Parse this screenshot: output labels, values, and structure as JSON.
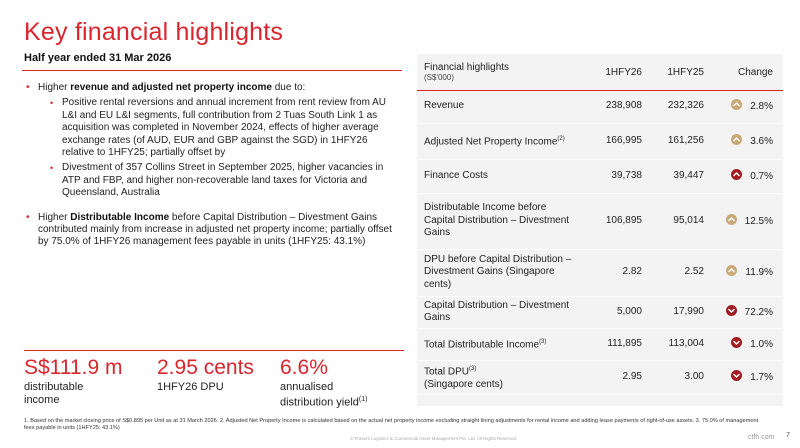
{
  "title": "Key financial highlights",
  "subtitle": "Half year ended 31 Mar 2026",
  "bullets": {
    "b1_pre": "Higher ",
    "b1_bold": "revenue and adjusted net property income",
    "b1_post": " due to:",
    "sub1": "Positive rental reversions and annual increment from rent review from AU L&I and EU L&I segments, full contribution from 2 Tuas South Link 1 as acquisition was completed in November 2024, effects of higher average exchange rates (of AUD, EUR and GBP against the SGD) in 1HFY26 relative to 1HFY25; partially offset by",
    "sub2": "Divestment of 357 Collins Street in September 2025, higher vacancies in ATP and FBP, and higher non-recoverable land taxes for Victoria and Queensland, Australia",
    "b2_pre": "Higher ",
    "b2_bold": "Distributable Income",
    "b2_post": " before Capital Distribution – Divestment Gains contributed mainly from increase in adjusted net property income; partially offset by 75.0% of 1HFY26 management fees payable in units (1HFY25: 43.1%)"
  },
  "kpis": [
    {
      "value": "S$111.9 m",
      "label_line1": "distributable",
      "label_line2": "income",
      "sup": ""
    },
    {
      "value": "2.95 cents",
      "label_line1": "1HFY26 DPU",
      "label_line2": "",
      "sup": ""
    },
    {
      "value": "6.6%",
      "label_line1": "annualised",
      "label_line2": "distribution yield",
      "sup": "(1)"
    }
  ],
  "table": {
    "header": {
      "label": "Financial highlights",
      "unit": "(S$'000)",
      "col1": "1HFY26",
      "col2": "1HFY25",
      "col3": "Change"
    },
    "rows": [
      {
        "label": "Revenue",
        "sup": "",
        "v1": "238,908",
        "v2": "232,326",
        "change": "2.8%",
        "dir": "up"
      },
      {
        "label": "Adjusted Net Property Income",
        "sup": "(2)",
        "v1": "166,995",
        "v2": "161,256",
        "change": "3.6%",
        "dir": "up"
      },
      {
        "label": "Finance Costs",
        "sup": "",
        "v1": "39,738",
        "v2": "39,447",
        "change": "0.7%",
        "dir": "up-red"
      },
      {
        "label": "Distributable Income before Capital Distribution – Divestment Gains",
        "sup": "",
        "v1": "106,895",
        "v2": "95,014",
        "change": "12.5%",
        "dir": "up"
      },
      {
        "label": "DPU before Capital Distribution – Divestment Gains (Singapore cents)",
        "sup": "",
        "v1": "2.82",
        "v2": "2.52",
        "change": "11.9%",
        "dir": "up"
      },
      {
        "label": "Capital Distribution – Divestment Gains",
        "sup": "",
        "v1": "5,000",
        "v2": "17,990",
        "change": "72.2%",
        "dir": "down"
      },
      {
        "label": "Total Distributable Income",
        "sup": "(3)",
        "v1": "111,895",
        "v2": "113,004",
        "change": "1.0%",
        "dir": "down"
      },
      {
        "label": "Total DPU",
        "sup": "(3)",
        "label2": "(Singapore cents)",
        "v1": "2.95",
        "v2": "3.00",
        "change": "1.7%",
        "dir": "down"
      }
    ]
  },
  "footnote": "1. Based on the market closing price of S$0.895 per Unit as at 31 March 2026.   2. Adjusted Net Property Income is calculated based on the actual net property income excluding straight lining adjustments for rental income and adding lease payments of right-of-use assets.   3. 75.0% of management fees payable in units (1HFY25: 43.1%)",
  "copyright": "© Frasers Logistics & Commercial Asset Management Pte. Ltd. All Rights Reserved",
  "page_number": "7",
  "watermark": "ctfh.com",
  "colors": {
    "accent": "#d9262e",
    "up": "#c9a878",
    "down": "#a01c22",
    "panel": "#f3f3f3"
  }
}
